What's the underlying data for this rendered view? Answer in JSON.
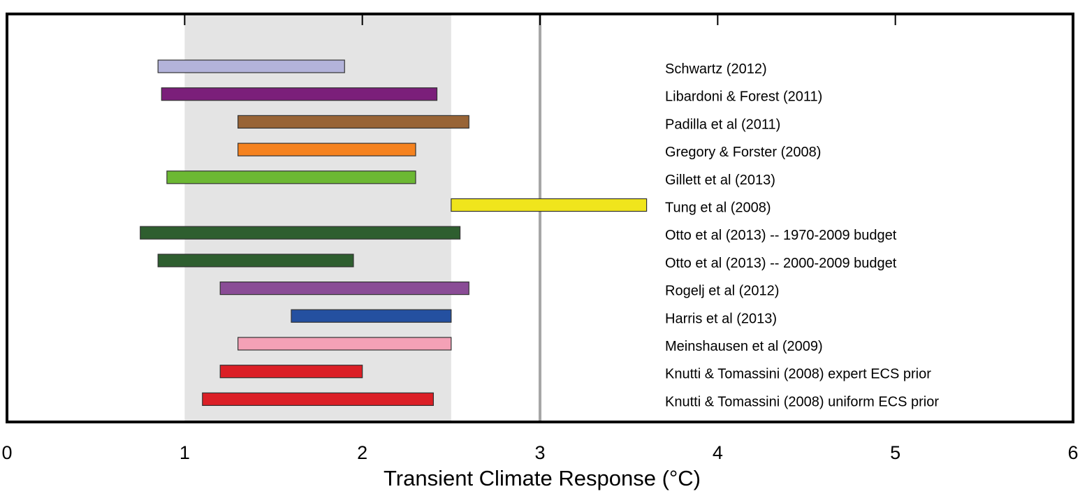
{
  "chart_data": {
    "type": "bar",
    "orientation": "horizontal-range",
    "xlabel": "Transient Climate Response (°C)",
    "xlim": [
      0,
      6
    ],
    "xticks": [
      "0",
      "1",
      "2",
      "3",
      "4",
      "5",
      "6"
    ],
    "shaded_range": [
      1,
      2.5
    ],
    "reference_line": 3,
    "series": [
      {
        "name": "Schwartz (2012)",
        "low": 0.85,
        "high": 1.9,
        "color": "#b3b3da"
      },
      {
        "name": "Libardoni & Forest (2011)",
        "low": 0.87,
        "high": 2.42,
        "color": "#7b1f7a"
      },
      {
        "name": "Padilla et al (2011)",
        "low": 1.3,
        "high": 2.6,
        "color": "#986436"
      },
      {
        "name": "Gregory & Forster (2008)",
        "low": 1.3,
        "high": 2.3,
        "color": "#f5821f"
      },
      {
        "name": "Gillett et al (2013)",
        "low": 0.9,
        "high": 2.3,
        "color": "#6cb833"
      },
      {
        "name": "Tung et al (2008)",
        "low": 2.5,
        "high": 3.6,
        "color": "#f0e51c"
      },
      {
        "name": "Otto et al (2013) -- 1970-2009 budget",
        "low": 0.75,
        "high": 2.55,
        "color": "#2e5e2f"
      },
      {
        "name": "Otto et al (2013) -- 2000-2009 budget",
        "low": 0.85,
        "high": 1.95,
        "color": "#2e5e2f"
      },
      {
        "name": "Rogelj et al (2012)",
        "low": 1.2,
        "high": 2.6,
        "color": "#8a4c96"
      },
      {
        "name": "Harris et al (2013)",
        "low": 1.6,
        "high": 2.5,
        "color": "#2450a0"
      },
      {
        "name": "Meinshausen et al (2009)",
        "low": 1.3,
        "high": 2.5,
        "color": "#f4a1b6"
      },
      {
        "name": "Knutti & Tomassini (2008) expert ECS prior",
        "low": 1.2,
        "high": 2.0,
        "color": "#db1f26"
      },
      {
        "name": "Knutti & Tomassini (2008) uniform ECS prior",
        "low": 1.1,
        "high": 2.4,
        "color": "#db1f26"
      }
    ]
  }
}
